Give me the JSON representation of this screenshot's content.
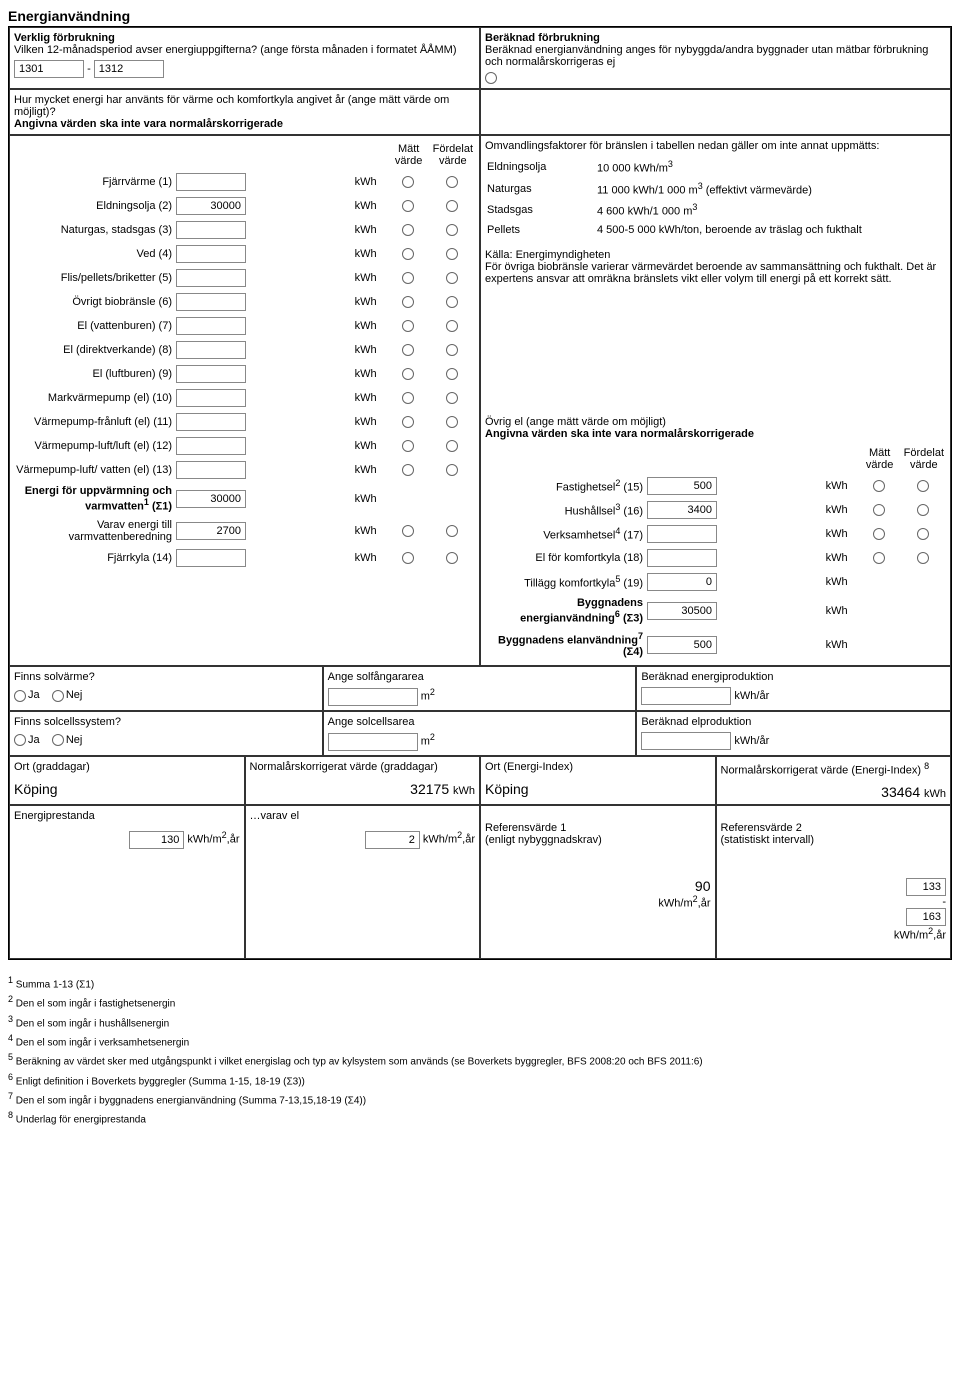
{
  "title": "Energianvändning",
  "left_top": {
    "heading": "Verklig förbrukning",
    "q1": "Vilken 12-månadsperiod avser energiuppgifterna? (ange första månaden i formatet ÅÅMM)",
    "p_from": "1301",
    "p_sep": "-",
    "p_to": "1312",
    "q2a": "Hur mycket energi har använts för värme och komfortkyla angivet år (ange mätt värde om möjligt)?",
    "q2b": "Angivna värden ska inte vara normalårskorrigerade",
    "col_matt": "Mätt värde",
    "col_ford": "Fördelat värde"
  },
  "right_top": {
    "heading": "Beräknad förbrukning",
    "text": "Beräknad energianvändning anges för nybyggda/andra byggnader utan mätbar förbrukning och normalårskorrigeras ej"
  },
  "rows_left": [
    {
      "label": "Fjärrvärme (1)",
      "value": "",
      "unit": "kWh"
    },
    {
      "label": "Eldningsolja (2)",
      "value": "30000",
      "unit": "kWh"
    },
    {
      "label": "Naturgas, stadsgas (3)",
      "value": "",
      "unit": "kWh"
    },
    {
      "label": "Ved (4)",
      "value": "",
      "unit": "kWh"
    },
    {
      "label": "Flis/pellets/briketter (5)",
      "value": "",
      "unit": "kWh"
    },
    {
      "label": "Övrigt biobränsle (6)",
      "value": "",
      "unit": "kWh"
    },
    {
      "label": "El (vattenburen) (7)",
      "value": "",
      "unit": "kWh"
    },
    {
      "label": "El (direktverkande) (8)",
      "value": "",
      "unit": "kWh"
    },
    {
      "label": "El (luftburen) (9)",
      "value": "",
      "unit": "kWh"
    },
    {
      "label": "Markvärmepump (el) (10)",
      "value": "",
      "unit": "kWh"
    },
    {
      "label": "Värmepump-frånluft (el) (11)",
      "value": "",
      "unit": "kWh"
    },
    {
      "label": "Värmepump-luft/luft (el) (12)",
      "value": "",
      "unit": "kWh"
    },
    {
      "label": "Värmepump-luft/ vatten (el) (13)",
      "value": "",
      "unit": "kWh"
    }
  ],
  "sigma_rows": [
    {
      "label": "Energi för uppvärmning och varmvatten",
      "sup": "1",
      "suffix": " (Σ1)",
      "value": "30000",
      "unit": "kWh",
      "noRadio": true,
      "bold": true
    },
    {
      "label": "Varav energi till varmvattenberedning",
      "value": "2700",
      "unit": "kWh"
    },
    {
      "label": "Fjärrkyla (14)",
      "value": "",
      "unit": "kWh"
    }
  ],
  "conv": {
    "intro": "Omvandlingsfaktorer för bränslen i tabellen nedan gäller om inte annat uppmätts:",
    "items": [
      {
        "k": "Eldningsolja",
        "v": "10 000 kWh/m",
        "sup": "3"
      },
      {
        "k": "Naturgas",
        "v": "11 000 kWh/1 000 m",
        "sup": "3",
        "tail": " (effektivt värmevärde)"
      },
      {
        "k": "Stadsgas",
        "v": "4 600 kWh/1 000 m",
        "sup": "3"
      },
      {
        "k": "Pellets",
        "v": "4 500-5 000 kWh/ton, beroende av träslag och fukthalt"
      }
    ],
    "src": "Källa: Energimyndigheten",
    "note": "För övriga biobränsle varierar värmevärdet beroende av sammansättning och fukthalt. Det är expertens ansvar att omräkna bränslets vikt eller volym till energi på ett korrekt sätt."
  },
  "right_el": {
    "heading": "Övrig el (ange mätt värde om möjligt)",
    "sub": "Angivna värden ska inte vara normalårskorrigerade",
    "col_matt": "Mätt värde",
    "col_ford": "Fördelat värde",
    "rows": [
      {
        "label": "Fastighetsel",
        "sup": "2",
        "suffix": " (15)",
        "value": "500",
        "unit": "kWh"
      },
      {
        "label": "Hushållsel",
        "sup": "3",
        "suffix": " (16)",
        "value": "3400",
        "unit": "kWh"
      },
      {
        "label": "Verksamhetsel",
        "sup": "4",
        "suffix": " (17)",
        "value": "",
        "unit": "kWh"
      },
      {
        "label": "El för komfortkyla (18)",
        "value": "",
        "unit": "kWh"
      },
      {
        "label": "Tillägg komfortkyla",
        "sup": "5",
        "suffix": " (19)",
        "value": "0",
        "unit": "kWh",
        "noRadio": true
      },
      {
        "label": "Byggnadens energianvändning",
        "sup": "6",
        "suffix": " (Σ3)",
        "value": "30500",
        "unit": "kWh",
        "noRadio": true,
        "bold": true
      },
      {
        "label": "Byggnadens elanvändning",
        "sup": "7",
        "suffix": " (Σ4)",
        "value": "500",
        "unit": "kWh",
        "noRadio": true,
        "bold": true
      }
    ]
  },
  "solar": {
    "q1": "Finns solvärme?",
    "a1": "Ange solfångararea",
    "b1": "Beräknad energiproduktion",
    "q2": "Finns solcellssystem?",
    "a2": "Ange solcellsarea",
    "b2": "Beräknad elproduktion",
    "ja": "Ja",
    "nej": "Nej",
    "m2": "m",
    "m2sup": "2",
    "kwhar": "kWh/år"
  },
  "grad": {
    "c1": "Ort (graddagar)",
    "c2": "Normalårskorrigerat värde (graddagar)",
    "c3": "Ort (Energi-Index)",
    "c4": "Normalårskorrigerat värde (Energi-Index)",
    "c4sup": "8",
    "ort1": "Köping",
    "v1": "32175",
    "u": "kWh",
    "ort2": "Köping",
    "v2": "33464"
  },
  "perf": {
    "c1": "Energiprestanda",
    "c2": "…varav el",
    "c3": "Referensvärde 1\n(enligt nybyggnadskrav)",
    "c4": "Referensvärde 2\n(statistiskt intervall)",
    "v1": "130",
    "v2": "2",
    "v3": "90",
    "v4a": "133",
    "sep": "-",
    "v4b": "163",
    "unit": "kWh/m",
    "unitsup": "2",
    "unitTail": ",år"
  },
  "footnotes": [
    "Summa 1-13 (Σ1)",
    "Den el som ingår i fastighetsenergin",
    "Den el som ingår i hushållsenergin",
    "Den el som ingår i verksamhetsenergin",
    "Beräkning av värdet sker med utgångspunkt i vilket energislag och typ av kylsystem som används (se Boverkets byggregler, BFS 2008:20 och BFS 2011:6)",
    "Enligt definition i Boverkets byggregler (Summa 1-15, 18-19 (Σ3))",
    "Den el som ingår i byggnadens energianvändning (Summa 7-13,15,18-19 (Σ4))",
    "Underlag för energiprestanda"
  ]
}
